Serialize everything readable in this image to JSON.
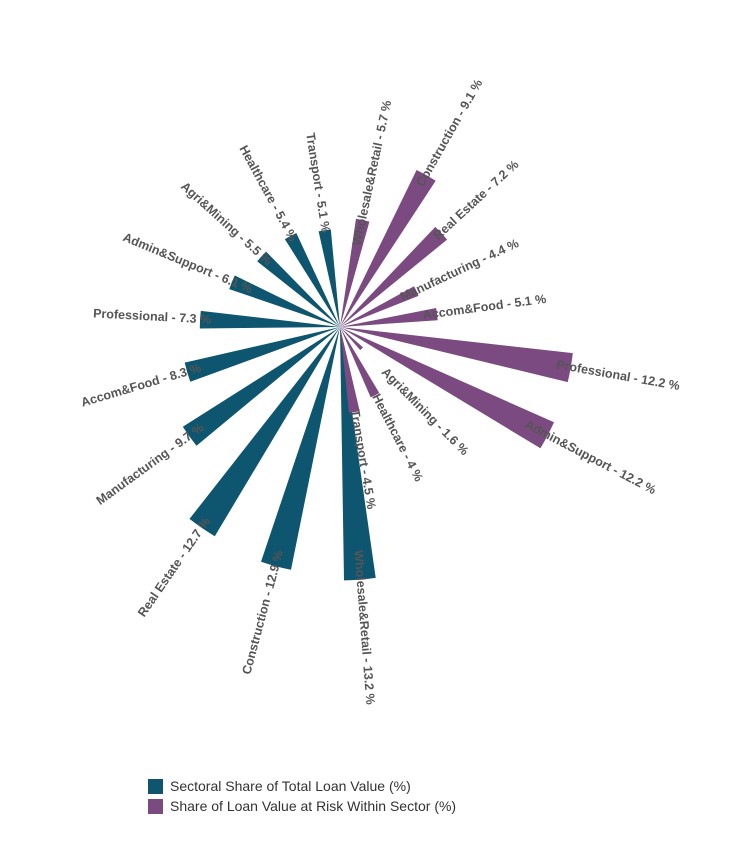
{
  "chart_data": {
    "type": "radial-bar",
    "title": "",
    "colors": {
      "total_share": "#0e5570",
      "at_risk": "#7b4a80"
    },
    "legend": [
      {
        "key": "total_share",
        "label": "Sectoral Share of Total Loan Value (%)"
      },
      {
        "key": "at_risk",
        "label": "Share of Loan Value at Risk Within Sector (%)"
      }
    ],
    "series": [
      {
        "key": "total_share",
        "name": "Sectoral Share of Total Loan Value (%)",
        "points": [
          {
            "label": "Wholesale&Retail - 13.2 %",
            "sector": "Wholesale&Retail",
            "value": 13.2
          },
          {
            "label": "Construction - 12.9 %",
            "sector": "Construction",
            "value": 12.9
          },
          {
            "label": "Real Estate - 12.7 %",
            "sector": "Real Estate",
            "value": 12.7
          },
          {
            "label": "Manufacturing - 9.7 %",
            "sector": "Manufacturing",
            "value": 9.7
          },
          {
            "label": "Accom&Food - 8.3 %",
            "sector": "Accom&Food",
            "value": 8.3
          },
          {
            "label": "Professional - 7.3 %",
            "sector": "Professional",
            "value": 7.3
          },
          {
            "label": "Admin&Support - 6.1 %",
            "sector": "Admin&Support",
            "value": 6.1
          },
          {
            "label": "Agri&Mining - 5.5 %",
            "sector": "Agri&Mining",
            "value": 5.5
          },
          {
            "label": "Healthcare - 5.4 %",
            "sector": "Healthcare",
            "value": 5.4
          },
          {
            "label": "Transport - 5.1 %",
            "sector": "Transport",
            "value": 5.1
          }
        ]
      },
      {
        "key": "at_risk",
        "name": "Share of Loan Value at Risk Within Sector (%)",
        "points": [
          {
            "label": "Wholesale&Retail - 5.7 %",
            "sector": "Wholesale&Retail",
            "value": 5.7
          },
          {
            "label": "Construction - 9.1 %",
            "sector": "Construction",
            "value": 9.1
          },
          {
            "label": "Real Estate - 7.2 %",
            "sector": "Real Estate",
            "value": 7.2
          },
          {
            "label": "Manufacturing - 4.4 %",
            "sector": "Manufacturing",
            "value": 4.4
          },
          {
            "label": "Accom&Food - 5.1 %",
            "sector": "Accom&Food",
            "value": 5.1
          },
          {
            "label": "Professional - 12.2 %",
            "sector": "Professional",
            "value": 12.2
          },
          {
            "label": "Admin&Support - 12.2 %",
            "sector": "Admin&Support",
            "value": 12.2
          },
          {
            "label": "Agri&Mining - 1.6 %",
            "sector": "Agri&Mining",
            "value": 1.6
          },
          {
            "label": "Healthcare - 4 %",
            "sector": "Healthcare",
            "value": 4
          },
          {
            "label": "Transport - 4.5 %",
            "sector": "Transport",
            "value": 4.5
          }
        ]
      }
    ]
  }
}
